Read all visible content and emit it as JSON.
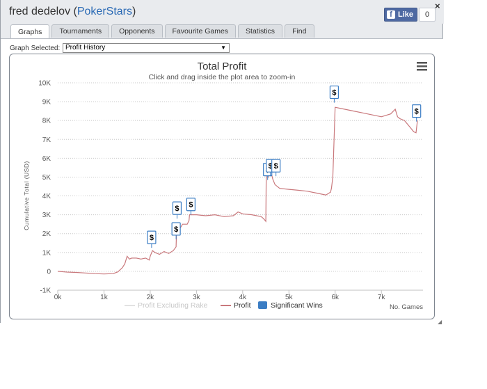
{
  "header": {
    "player": "fred dedelov",
    "site_open": " (",
    "site": "PokerStars",
    "site_close": ")",
    "close_glyph": "×",
    "fb_like_label": "Like",
    "fb_logo": "f",
    "fb_count": "0"
  },
  "tabs": [
    {
      "label": "Graphs",
      "active": true
    },
    {
      "label": "Tournaments",
      "active": false
    },
    {
      "label": "Opponents",
      "active": false
    },
    {
      "label": "Favourite Games",
      "active": false
    },
    {
      "label": "Statistics",
      "active": false
    },
    {
      "label": "Find",
      "active": false
    }
  ],
  "graph_select": {
    "label": "Graph Selected:",
    "value": "Profit History",
    "arrow": "▼"
  },
  "chart_data": {
    "type": "line",
    "title": "Total Profit",
    "subtitle": "Click and drag inside the plot area to zoom-in",
    "xlabel": "No. Games",
    "ylabel": "Cumulative Total (USD)",
    "xlim": [
      0,
      7900
    ],
    "ylim": [
      -1000,
      10000
    ],
    "x_ticks": [
      0,
      1000,
      2000,
      3000,
      4000,
      5000,
      6000,
      7000
    ],
    "x_tick_labels": [
      "0k",
      "1k",
      "2k",
      "3k",
      "4k",
      "5k",
      "6k",
      "7k"
    ],
    "y_ticks": [
      -1000,
      0,
      1000,
      2000,
      3000,
      4000,
      5000,
      6000,
      7000,
      8000,
      9000,
      10000
    ],
    "y_tick_labels": [
      "-1K",
      "0",
      "1K",
      "2K",
      "3K",
      "4K",
      "5K",
      "6K",
      "7K",
      "8K",
      "9K",
      "10K"
    ],
    "grid": "horizontal dotted",
    "legend_position": "bottom",
    "legend": [
      "Profit Excluding Rake",
      "Profit",
      "Significant Wins"
    ],
    "series": [
      {
        "name": "Profit",
        "color": "#c9787c",
        "x": [
          0,
          200,
          400,
          600,
          800,
          1000,
          1200,
          1300,
          1400,
          1450,
          1500,
          1550,
          1600,
          1700,
          1800,
          1900,
          1980,
          2000,
          2050,
          2100,
          2200,
          2300,
          2400,
          2500,
          2560,
          2570,
          2600,
          2650,
          2700,
          2800,
          2840,
          2850,
          3000,
          3200,
          3400,
          3600,
          3800,
          3900,
          4000,
          4200,
          4400,
          4450,
          4500,
          4510,
          4550,
          4600,
          4650,
          4700,
          4800,
          5000,
          5200,
          5400,
          5600,
          5800,
          5900,
          5920,
          5950,
          6000,
          6200,
          6400,
          6600,
          6800,
          7000,
          7200,
          7300,
          7350,
          7400,
          7500,
          7600,
          7700,
          7750,
          7780
        ],
        "values": [
          0,
          -40,
          -60,
          -90,
          -120,
          -140,
          -120,
          -30,
          200,
          400,
          800,
          650,
          700,
          700,
          650,
          700,
          600,
          800,
          1100,
          1000,
          900,
          1050,
          950,
          1100,
          1300,
          2200,
          2300,
          2300,
          2500,
          2500,
          2700,
          3000,
          3000,
          2950,
          3000,
          2900,
          2950,
          3150,
          3050,
          3000,
          2900,
          2800,
          2650,
          5200,
          5000,
          5400,
          4900,
          4600,
          4400,
          4350,
          4300,
          4250,
          4150,
          4050,
          4200,
          4400,
          5000,
          8700,
          8600,
          8500,
          8400,
          8300,
          8200,
          8350,
          8600,
          8200,
          8100,
          8000,
          7700,
          7400,
          7350,
          8000
        ]
      },
      {
        "name": "Profit Excluding Rake",
        "color": "#e2e2e2",
        "x": [],
        "values": []
      }
    ],
    "significant_wins": [
      {
        "x": 2030,
        "y": 1800
      },
      {
        "x": 2560,
        "y": 2250
      },
      {
        "x": 2580,
        "y": 3350
      },
      {
        "x": 2880,
        "y": 3550
      },
      {
        "x": 4540,
        "y": 5400
      },
      {
        "x": 4600,
        "y": 5600
      },
      {
        "x": 4720,
        "y": 5600
      },
      {
        "x": 5980,
        "y": 9500
      },
      {
        "x": 7760,
        "y": 8500
      }
    ],
    "marker_glyph": "$",
    "significant_color": "#3b7dc4"
  }
}
